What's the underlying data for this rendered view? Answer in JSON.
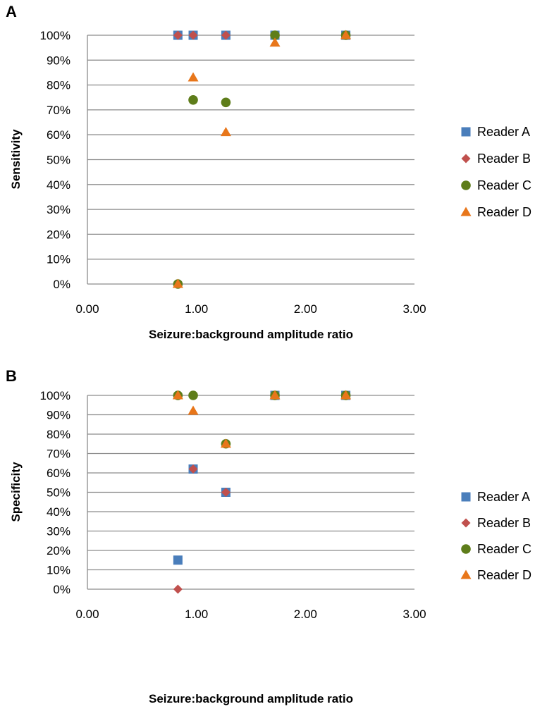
{
  "chart_data": [
    {
      "panel": "A",
      "type": "scatter",
      "xlabel": "Seizure:background amplitude ratio",
      "ylabel": "Sensitivity",
      "xlim": [
        0,
        3
      ],
      "ylim": [
        0,
        100
      ],
      "x_ticks": [
        "0.00",
        "1.00",
        "2.00",
        "3.00"
      ],
      "y_ticks": [
        "0%",
        "10%",
        "20%",
        "30%",
        "40%",
        "50%",
        "60%",
        "70%",
        "80%",
        "90%",
        "100%"
      ],
      "grid": "horizontal",
      "legend_position": "right",
      "series": [
        {
          "name": "Reader A",
          "marker": "square",
          "color": "#4a7ebb",
          "points": [
            [
              0.83,
              100
            ],
            [
              0.97,
              100
            ],
            [
              1.27,
              100
            ],
            [
              1.72,
              100
            ],
            [
              2.37,
              100
            ]
          ]
        },
        {
          "name": "Reader B",
          "marker": "diamond",
          "color": "#c0504d",
          "points": [
            [
              0.83,
              100
            ],
            [
              0.97,
              100
            ],
            [
              1.27,
              100
            ],
            [
              1.72,
              100
            ],
            [
              2.37,
              100
            ]
          ]
        },
        {
          "name": "Reader C",
          "marker": "circle",
          "color": "#5e7d1a",
          "points": [
            [
              0.83,
              0
            ],
            [
              0.97,
              74
            ],
            [
              1.27,
              73
            ],
            [
              1.72,
              100
            ],
            [
              2.37,
              100
            ]
          ]
        },
        {
          "name": "Reader D",
          "marker": "triangle",
          "color": "#e8761a",
          "points": [
            [
              0.83,
              0
            ],
            [
              0.97,
              83
            ],
            [
              1.27,
              61
            ],
            [
              1.72,
              97
            ],
            [
              2.37,
              100
            ]
          ]
        }
      ]
    },
    {
      "panel": "B",
      "type": "scatter",
      "xlabel": "Seizure:background amplitude ratio",
      "ylabel": "Specificity",
      "xlim": [
        0,
        3
      ],
      "ylim": [
        0,
        100
      ],
      "x_ticks": [
        "0.00",
        "1.00",
        "2.00",
        "3.00"
      ],
      "y_ticks": [
        "0%",
        "10%",
        "20%",
        "30%",
        "40%",
        "50%",
        "60%",
        "70%",
        "80%",
        "90%",
        "100%"
      ],
      "grid": "horizontal",
      "legend_position": "right",
      "series": [
        {
          "name": "Reader A",
          "marker": "square",
          "color": "#4a7ebb",
          "points": [
            [
              0.83,
              15
            ],
            [
              0.97,
              62
            ],
            [
              1.27,
              50
            ],
            [
              1.72,
              100
            ],
            [
              2.37,
              100
            ]
          ]
        },
        {
          "name": "Reader B",
          "marker": "diamond",
          "color": "#c0504d",
          "points": [
            [
              0.83,
              0
            ],
            [
              0.97,
              62
            ],
            [
              1.27,
              50
            ],
            [
              1.72,
              100
            ],
            [
              2.37,
              100
            ]
          ]
        },
        {
          "name": "Reader C",
          "marker": "circle",
          "color": "#5e7d1a",
          "points": [
            [
              0.83,
              100
            ],
            [
              0.97,
              100
            ],
            [
              1.27,
              75
            ],
            [
              1.72,
              100
            ],
            [
              2.37,
              100
            ]
          ]
        },
        {
          "name": "Reader D",
          "marker": "triangle",
          "color": "#e8761a",
          "points": [
            [
              0.83,
              100
            ],
            [
              0.97,
              92
            ],
            [
              1.27,
              75
            ],
            [
              1.72,
              100
            ],
            [
              2.37,
              100
            ]
          ]
        }
      ]
    }
  ]
}
